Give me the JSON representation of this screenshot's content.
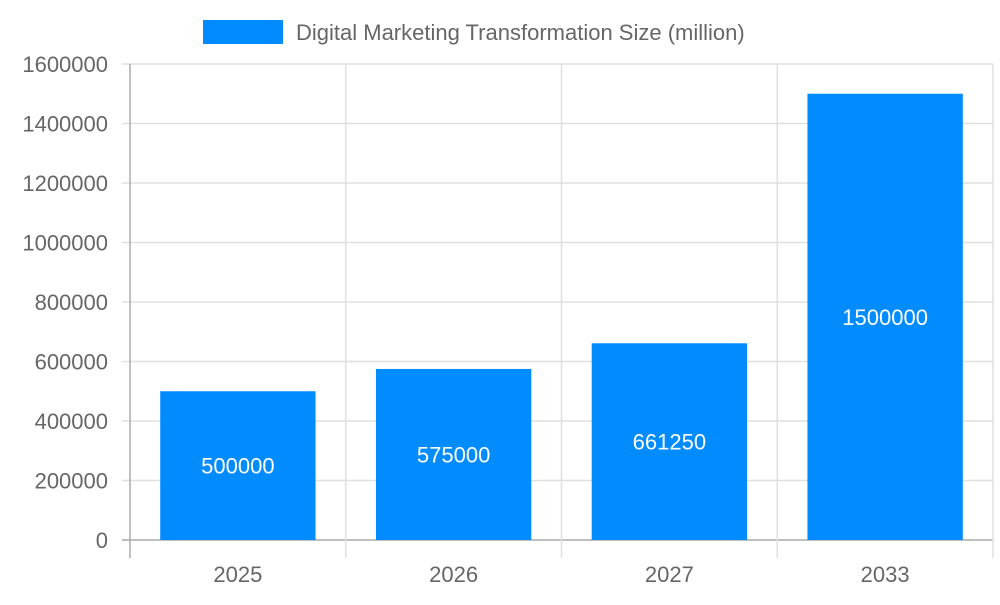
{
  "chart_data": {
    "type": "bar",
    "title": "",
    "xlabel": "",
    "ylabel": "",
    "categories": [
      "2025",
      "2026",
      "2027",
      "2033"
    ],
    "series": [
      {
        "name": "Digital Marketing Transformation Size (million)",
        "values": [
          500000,
          575000,
          661250,
          1500000
        ],
        "color": "#008cff"
      }
    ],
    "data_labels": [
      "500000",
      "575000",
      "661250",
      "1500000"
    ],
    "ylim": [
      0,
      1600000
    ],
    "yticks": [
      "0",
      "200000",
      "400000",
      "600000",
      "800000",
      "1000000",
      "1200000",
      "1400000",
      "1600000"
    ],
    "grid": true,
    "legend_position": "top"
  }
}
